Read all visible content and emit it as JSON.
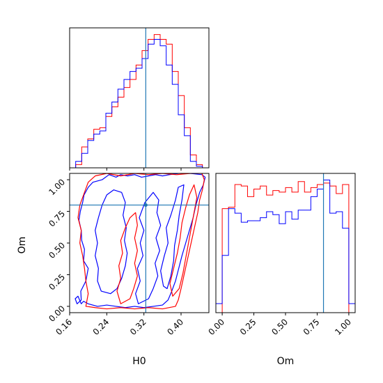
{
  "chart_data": {
    "type": "corner",
    "colors": {
      "series_a": "#ff0000",
      "series_b": "#0000ff",
      "truth": "#1f77b4"
    },
    "series": [
      {
        "name": "",
        "color": "#ff0000"
      },
      {
        "name": "",
        "color": "#0000ff"
      }
    ],
    "parameters": [
      {
        "label": "H0",
        "range": [
          0.16,
          0.46
        ]
      },
      {
        "label": "Om",
        "range": [
          -0.05,
          1.05
        ]
      }
    ],
    "truth": {
      "H0": 0.324,
      "Om": 0.8
    },
    "panels": [
      {
        "id": "hist-H0",
        "type": "histogram",
        "parameter": "H0",
        "x_ticks": [],
        "bin_edges": [
          0.16,
          0.173,
          0.186,
          0.199,
          0.212,
          0.225,
          0.238,
          0.251,
          0.264,
          0.277,
          0.29,
          0.303,
          0.316,
          0.329,
          0.342,
          0.355,
          0.368,
          0.381,
          0.394,
          0.407,
          0.42,
          0.433,
          0.446,
          0.459
        ],
        "series": [
          {
            "color": "#ff0000",
            "values": [
              0,
              2,
              13,
              18,
              24,
              25,
              32,
              38,
              44,
              50,
              55,
              64,
              73,
              80,
              83,
              80,
              77,
              60,
              45,
              25,
              8,
              2,
              0
            ]
          },
          {
            "color": "#0000ff",
            "values": [
              0,
              4,
              9,
              17,
              21,
              23,
              34,
              41,
              49,
              55,
              60,
              62,
              68,
              77,
              80,
              76,
              64,
              52,
              33,
              20,
              4,
              1,
              0
            ]
          }
        ],
        "truth_x": 0.324
      },
      {
        "id": "contour-H0-Om",
        "type": "contour",
        "x": "H0",
        "y": "Om",
        "x_ticks": [
          "0.16",
          "0.24",
          "0.32",
          "0.40"
        ],
        "y_ticks": [
          "0.00",
          "0.25",
          "0.50",
          "0.75",
          "1.00"
        ],
        "x_label": "H0",
        "y_label": "Om",
        "truth": [
          0.324,
          0.8
        ],
        "contours": [
          {
            "color": "#0000ff",
            "points": [
              [
                0.172,
                0.06
              ],
              [
                0.176,
                0.02
              ],
              [
                0.185,
                0.05
              ],
              [
                0.184,
                0.12
              ],
              [
                0.195,
                0.2
              ],
              [
                0.2,
                0.3
              ],
              [
                0.19,
                0.36
              ],
              [
                0.192,
                0.45
              ],
              [
                0.186,
                0.52
              ],
              [
                0.185,
                0.6
              ],
              [
                0.18,
                0.68
              ],
              [
                0.183,
                0.75
              ],
              [
                0.188,
                0.82
              ],
              [
                0.191,
                0.88
              ],
              [
                0.2,
                0.94
              ],
              [
                0.21,
                0.98
              ],
              [
                0.23,
                1.0
              ],
              [
                0.245,
                1.04
              ],
              [
                0.26,
                1.02
              ],
              [
                0.27,
                1.04
              ],
              [
                0.285,
                1.03
              ],
              [
                0.3,
                1.04
              ],
              [
                0.315,
                1.02
              ],
              [
                0.33,
                1.03
              ],
              [
                0.345,
                1.04
              ],
              [
                0.36,
                1.03
              ],
              [
                0.375,
                1.04
              ],
              [
                0.395,
                1.05
              ],
              [
                0.42,
                1.05
              ],
              [
                0.445,
                1.04
              ],
              [
                0.452,
                1.02
              ],
              [
                0.448,
                0.96
              ],
              [
                0.44,
                0.9
              ],
              [
                0.432,
                0.8
              ],
              [
                0.426,
                0.7
              ],
              [
                0.418,
                0.6
              ],
              [
                0.41,
                0.5
              ],
              [
                0.402,
                0.4
              ],
              [
                0.395,
                0.3
              ],
              [
                0.388,
                0.2
              ],
              [
                0.38,
                0.12
              ],
              [
                0.372,
                0.05
              ],
              [
                0.36,
                0.01
              ],
              [
                0.34,
                0.0
              ],
              [
                0.32,
                -0.01
              ],
              [
                0.3,
                0.0
              ],
              [
                0.28,
                -0.01
              ],
              [
                0.26,
                0.0
              ],
              [
                0.24,
                0.01
              ],
              [
                0.22,
                0.0
              ],
              [
                0.2,
                0.02
              ],
              [
                0.19,
                0.04
              ],
              [
                0.185,
                0.02
              ],
              [
                0.178,
                0.08
              ],
              [
                0.172,
                0.06
              ]
            ]
          },
          {
            "color": "#0000ff",
            "points": [
              [
                0.228,
                0.12
              ],
              [
                0.22,
                0.2
              ],
              [
                0.222,
                0.3
              ],
              [
                0.215,
                0.4
              ],
              [
                0.22,
                0.5
              ],
              [
                0.215,
                0.6
              ],
              [
                0.222,
                0.7
              ],
              [
                0.23,
                0.8
              ],
              [
                0.24,
                0.88
              ],
              [
                0.255,
                0.92
              ],
              [
                0.272,
                0.9
              ],
              [
                0.28,
                0.82
              ],
              [
                0.275,
                0.72
              ],
              [
                0.282,
                0.62
              ],
              [
                0.278,
                0.52
              ],
              [
                0.284,
                0.42
              ],
              [
                0.28,
                0.32
              ],
              [
                0.272,
                0.22
              ],
              [
                0.262,
                0.14
              ],
              [
                0.248,
                0.1
              ],
              [
                0.228,
                0.12
              ]
            ]
          },
          {
            "color": "#0000ff",
            "points": [
              [
                0.308,
                0.02
              ],
              [
                0.302,
                0.1
              ],
              [
                0.312,
                0.2
              ],
              [
                0.306,
                0.3
              ],
              [
                0.318,
                0.4
              ],
              [
                0.312,
                0.5
              ],
              [
                0.32,
                0.6
              ],
              [
                0.31,
                0.7
              ],
              [
                0.322,
                0.82
              ],
              [
                0.34,
                0.9
              ],
              [
                0.352,
                0.84
              ],
              [
                0.348,
                0.74
              ],
              [
                0.356,
                0.64
              ],
              [
                0.346,
                0.54
              ],
              [
                0.354,
                0.44
              ],
              [
                0.344,
                0.34
              ],
              [
                0.35,
                0.24
              ],
              [
                0.34,
                0.14
              ],
              [
                0.33,
                0.06
              ],
              [
                0.308,
                0.02
              ]
            ]
          },
          {
            "color": "#0000ff",
            "points": [
              [
                0.362,
                0.16
              ],
              [
                0.356,
                0.28
              ],
              [
                0.364,
                0.4
              ],
              [
                0.372,
                0.5
              ],
              [
                0.368,
                0.62
              ],
              [
                0.378,
                0.72
              ],
              [
                0.388,
                0.84
              ],
              [
                0.394,
                0.94
              ],
              [
                0.406,
                0.96
              ],
              [
                0.402,
                0.84
              ],
              [
                0.396,
                0.72
              ],
              [
                0.392,
                0.6
              ],
              [
                0.386,
                0.48
              ],
              [
                0.384,
                0.36
              ],
              [
                0.378,
                0.24
              ],
              [
                0.37,
                0.14
              ],
              [
                0.362,
                0.16
              ]
            ]
          },
          {
            "color": "#ff0000",
            "points": [
              [
                0.195,
                0.0
              ],
              [
                0.2,
                0.1
              ],
              [
                0.195,
                0.2
              ],
              [
                0.192,
                0.3
              ],
              [
                0.188,
                0.4
              ],
              [
                0.182,
                0.5
              ],
              [
                0.185,
                0.6
              ],
              [
                0.178,
                0.7
              ],
              [
                0.182,
                0.8
              ],
              [
                0.192,
                0.9
              ],
              [
                0.2,
                0.98
              ],
              [
                0.215,
                1.03
              ],
              [
                0.24,
                1.05
              ],
              [
                0.27,
                1.03
              ],
              [
                0.3,
                1.05
              ],
              [
                0.33,
                1.04
              ],
              [
                0.36,
                1.05
              ],
              [
                0.39,
                1.04
              ],
              [
                0.42,
                1.05
              ],
              [
                0.445,
                1.05
              ],
              [
                0.45,
                1.0
              ],
              [
                0.446,
                0.92
              ],
              [
                0.44,
                0.84
              ],
              [
                0.436,
                0.74
              ],
              [
                0.43,
                0.64
              ],
              [
                0.424,
                0.54
              ],
              [
                0.418,
                0.44
              ],
              [
                0.412,
                0.34
              ],
              [
                0.406,
                0.24
              ],
              [
                0.4,
                0.14
              ],
              [
                0.394,
                0.05
              ],
              [
                0.388,
                0.0
              ],
              [
                0.36,
                -0.02
              ],
              [
                0.33,
                -0.01
              ],
              [
                0.3,
                -0.02
              ],
              [
                0.27,
                -0.01
              ],
              [
                0.24,
                -0.02
              ],
              [
                0.215,
                -0.01
              ],
              [
                0.195,
                0.0
              ]
            ]
          },
          {
            "color": "#ff0000",
            "points": [
              [
                0.27,
                0.02
              ],
              [
                0.262,
                0.12
              ],
              [
                0.27,
                0.22
              ],
              [
                0.266,
                0.32
              ],
              [
                0.274,
                0.42
              ],
              [
                0.27,
                0.52
              ],
              [
                0.28,
                0.62
              ],
              [
                0.29,
                0.7
              ],
              [
                0.302,
                0.74
              ],
              [
                0.306,
                0.64
              ],
              [
                0.3,
                0.54
              ],
              [
                0.306,
                0.44
              ],
              [
                0.3,
                0.34
              ],
              [
                0.306,
                0.24
              ],
              [
                0.298,
                0.14
              ],
              [
                0.29,
                0.06
              ],
              [
                0.27,
                0.02
              ]
            ]
          },
          {
            "color": "#ff0000",
            "points": [
              [
                0.382,
                0.08
              ],
              [
                0.376,
                0.18
              ],
              [
                0.384,
                0.3
              ],
              [
                0.392,
                0.42
              ],
              [
                0.398,
                0.54
              ],
              [
                0.402,
                0.66
              ],
              [
                0.41,
                0.78
              ],
              [
                0.418,
                0.88
              ],
              [
                0.428,
                0.96
              ],
              [
                0.434,
                0.86
              ],
              [
                0.428,
                0.74
              ],
              [
                0.422,
                0.62
              ],
              [
                0.416,
                0.5
              ],
              [
                0.41,
                0.38
              ],
              [
                0.404,
                0.26
              ],
              [
                0.396,
                0.14
              ],
              [
                0.382,
                0.08
              ]
            ]
          }
        ]
      },
      {
        "id": "hist-Om",
        "type": "histogram",
        "parameter": "Om",
        "x_ticks": [
          "0.00",
          "0.25",
          "0.50",
          "0.75",
          "1.00"
        ],
        "x_label": "Om",
        "bin_edges": [
          -0.05,
          0.0,
          0.05,
          0.1,
          0.15,
          0.2,
          0.25,
          0.3,
          0.35,
          0.4,
          0.45,
          0.5,
          0.55,
          0.6,
          0.65,
          0.7,
          0.75,
          0.8,
          0.85,
          0.9,
          0.95,
          1.0,
          1.05
        ],
        "series": [
          {
            "color": "#ff0000",
            "values": [
              0,
              69,
              70,
              85,
              84,
              77,
              82,
              84,
              78,
              81,
              80,
              83,
              80,
              87,
              80,
              83,
              85,
              86,
              84,
              79,
              85,
              0
            ]
          },
          {
            "color": "#0000ff",
            "values": [
              6,
              38,
              69,
              66,
              60,
              61,
              61,
              63,
              67,
              65,
              59,
              67,
              62,
              68,
              68,
              77,
              82,
              88,
              66,
              67,
              56,
              6
            ]
          }
        ],
        "truth_x": 0.8
      }
    ]
  }
}
